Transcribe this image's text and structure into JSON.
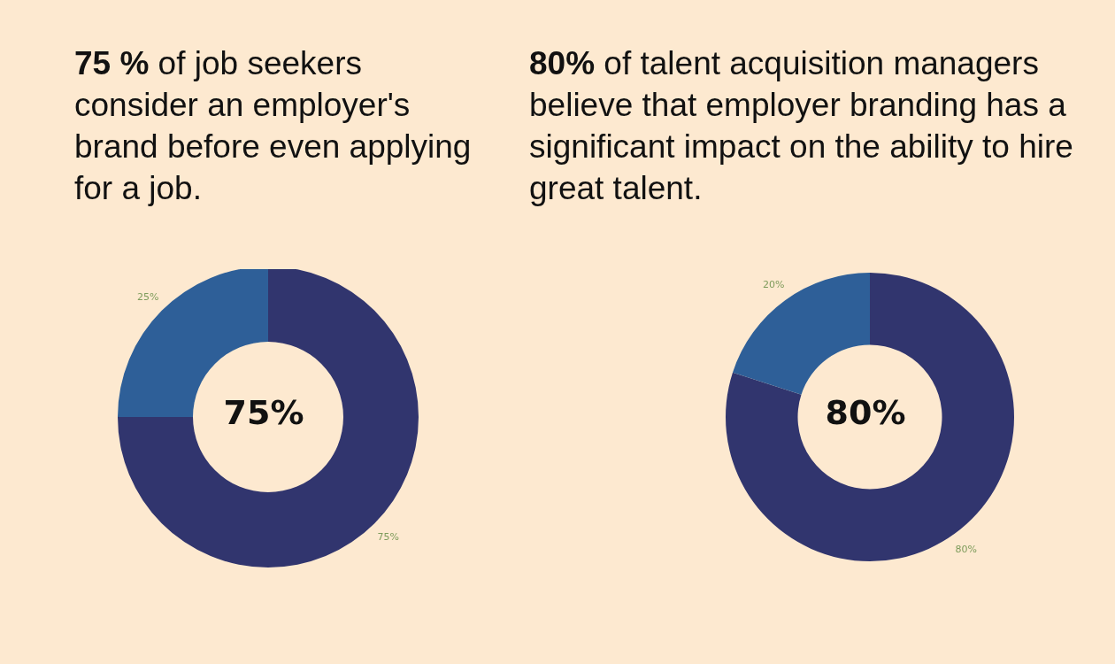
{
  "chart_data": [
    {
      "type": "donut",
      "title": "75 % of job seekers consider an employer's brand before even applying for a job.",
      "categories": [
        null,
        null
      ],
      "values": [
        75,
        25
      ],
      "colors": [
        "#31356e",
        "#2e5f98"
      ],
      "value_labels": [
        "75%",
        "25%"
      ],
      "annotations": [
        "75%"
      ]
    },
    {
      "type": "donut",
      "title": "80% of talent acquisition managers believe that employer branding has a significant impact on the ability to hire great talent.",
      "categories": [
        null,
        null
      ],
      "values": [
        80,
        20
      ],
      "colors": [
        "#31356e",
        "#2e5f98"
      ],
      "value_labels": [
        "80%",
        "20%"
      ],
      "annotations": [
        "80%"
      ]
    }
  ]
}
